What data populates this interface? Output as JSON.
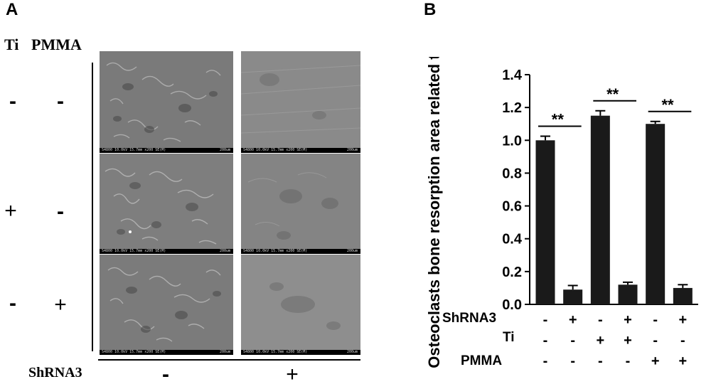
{
  "panel_a": {
    "letter": "A",
    "col_header_ti": "Ti",
    "col_header_pmma": "PMMA",
    "rows": [
      {
        "ti": "-",
        "pmma": "-"
      },
      {
        "ti": "+",
        "pmma": "-"
      },
      {
        "ti": "-",
        "pmma": "+"
      }
    ],
    "shrna_label": "ShRNA3",
    "shrna_columns": [
      "-",
      "+"
    ],
    "sem_info": "S4800 10.0kV 15.7mm x200 SE(M)",
    "sem_scale": "200um"
  },
  "panel_b": {
    "letter": "B",
    "row_labels": [
      "ShRNA3",
      "Ti",
      "PMMA"
    ],
    "row_signs": [
      [
        "-",
        "+",
        "-",
        "+",
        "-",
        "+"
      ],
      [
        "-",
        "-",
        "+",
        "+",
        "-",
        "-"
      ],
      [
        "-",
        "-",
        "-",
        "-",
        "+",
        "+"
      ]
    ]
  },
  "chart_data": {
    "type": "bar",
    "ylabel": "Osteoclasts bone resorption area related to control",
    "ylim": [
      0,
      1.4
    ],
    "yticks": [
      "0.0",
      "0.2",
      "0.4",
      "0.6",
      "0.8",
      "1.0",
      "1.2",
      "1.4"
    ],
    "values": [
      1.0,
      0.09,
      1.15,
      0.12,
      1.1,
      0.1
    ],
    "errors": [
      0.025,
      0.025,
      0.03,
      0.015,
      0.015,
      0.02
    ],
    "significance": [
      {
        "pair": [
          0,
          1
        ],
        "label": "**"
      },
      {
        "pair": [
          2,
          3
        ],
        "label": "**"
      },
      {
        "pair": [
          4,
          5
        ],
        "label": "**"
      }
    ],
    "bar_color": "#1a1a1a"
  }
}
